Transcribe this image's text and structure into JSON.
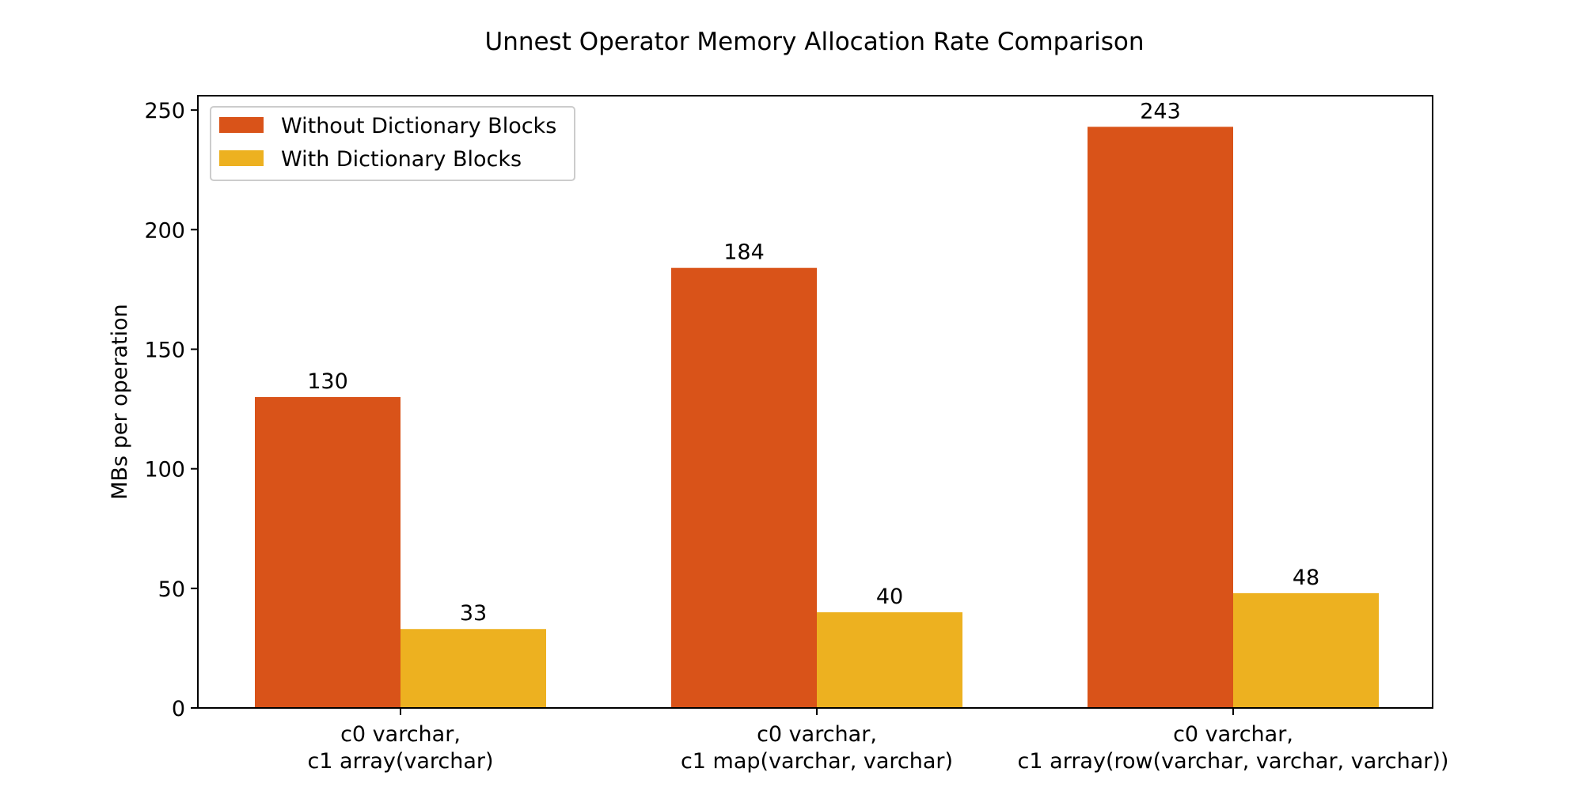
{
  "chart_data": {
    "type": "bar",
    "title": "Unnest Operator Memory Allocation Rate Comparison",
    "xlabel": "",
    "ylabel": "MBs per operation",
    "ylim": [
      0,
      256
    ],
    "yticks": [
      0,
      50,
      100,
      150,
      200,
      250
    ],
    "categories": [
      [
        "c0 varchar,",
        "c1 array(varchar)"
      ],
      [
        "c0 varchar,",
        "c1 map(varchar, varchar)"
      ],
      [
        "c0 varchar,",
        "c1 array(row(varchar, varchar, varchar))"
      ]
    ],
    "series": [
      {
        "name": "Without Dictionary Blocks",
        "color": "#d95319",
        "values": [
          130,
          184,
          243
        ]
      },
      {
        "name": "With Dictionary Blocks",
        "color": "#edb120",
        "values": [
          33,
          40,
          48
        ]
      }
    ],
    "grid": false,
    "legend_position": "top-left"
  }
}
